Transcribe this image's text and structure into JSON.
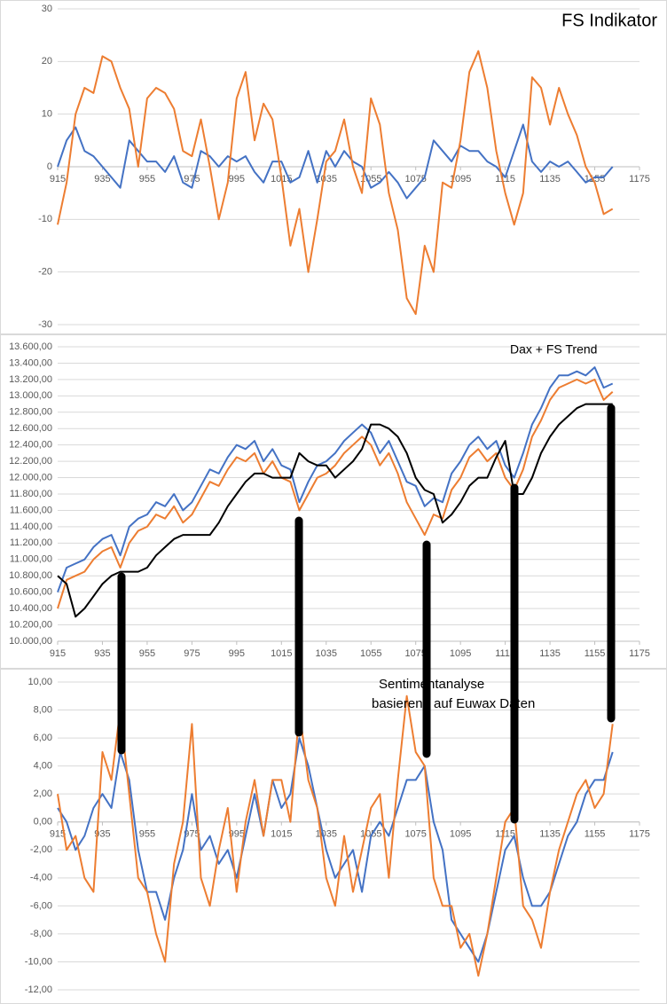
{
  "chart_data": [
    {
      "type": "line",
      "title": "FS Indikator",
      "x": [
        915,
        919,
        923,
        927,
        931,
        935,
        939,
        943,
        947,
        951,
        955,
        959,
        963,
        967,
        971,
        975,
        979,
        983,
        987,
        991,
        995,
        999,
        1003,
        1007,
        1011,
        1015,
        1019,
        1023,
        1027,
        1031,
        1035,
        1039,
        1043,
        1047,
        1051,
        1055,
        1059,
        1063,
        1067,
        1071,
        1075,
        1079,
        1083,
        1087,
        1091,
        1095,
        1099,
        1103,
        1107,
        1111,
        1115,
        1119,
        1123,
        1127,
        1131,
        1135,
        1139,
        1143,
        1147,
        1151,
        1155,
        1159,
        1163
      ],
      "series": [
        {
          "color": "#4472c4",
          "values": [
            0,
            5,
            7.5,
            3,
            2,
            0,
            -2,
            -4,
            5,
            3,
            1,
            1,
            -1,
            2,
            -3,
            -4,
            3,
            2,
            0,
            2,
            1,
            2,
            -1,
            -3,
            1,
            1,
            -3,
            -2,
            3,
            -3,
            3,
            0,
            3,
            1,
            0,
            -4,
            -3,
            -1,
            -3,
            -6,
            -4,
            -2,
            5,
            3,
            1,
            4,
            3,
            3,
            1,
            0,
            -2,
            3,
            8,
            1,
            -1,
            1,
            0,
            1,
            -1,
            -3,
            -2,
            -2,
            0
          ]
        },
        {
          "color": "#ed7d31",
          "values": [
            -11,
            -3,
            10,
            15,
            14,
            21,
            20,
            15,
            11,
            0,
            13,
            15,
            14,
            11,
            3,
            2,
            9,
            0,
            -10,
            -3,
            13,
            18,
            5,
            12,
            9,
            -2,
            -15,
            -8,
            -20,
            -10,
            1,
            3,
            9,
            0,
            -5,
            13,
            8,
            -5,
            -12,
            -25,
            -28,
            -15,
            -20,
            -3,
            -4,
            5,
            18,
            22,
            15,
            3,
            -5,
            -11,
            -5,
            17,
            15,
            8,
            15,
            10,
            6,
            0,
            -3,
            -9,
            -8
          ]
        }
      ],
      "xlim": [
        915,
        1175
      ],
      "xticks": [
        915,
        935,
        955,
        975,
        995,
        1015,
        1035,
        1055,
        1075,
        1095,
        1115,
        1135,
        1155,
        1175
      ],
      "ylim": [
        -30,
        30
      ],
      "yticks": [
        -30,
        -20,
        -10,
        0,
        10,
        20,
        30
      ],
      "grid": true
    },
    {
      "type": "line",
      "annotation": "Dax + FS Trend",
      "x": [
        915,
        919,
        923,
        927,
        931,
        935,
        939,
        943,
        947,
        951,
        955,
        959,
        963,
        967,
        971,
        975,
        979,
        983,
        987,
        991,
        995,
        999,
        1003,
        1007,
        1011,
        1015,
        1019,
        1023,
        1027,
        1031,
        1035,
        1039,
        1043,
        1047,
        1051,
        1055,
        1059,
        1063,
        1067,
        1071,
        1075,
        1079,
        1083,
        1087,
        1091,
        1095,
        1099,
        1103,
        1107,
        1111,
        1115,
        1119,
        1123,
        1127,
        1131,
        1135,
        1139,
        1143,
        1147,
        1151,
        1155,
        1159,
        1163
      ],
      "series": [
        {
          "color": "#4472c4",
          "values": [
            10600,
            10900,
            10950,
            11000,
            11150,
            11250,
            11300,
            11050,
            11400,
            11500,
            11550,
            11700,
            11650,
            11800,
            11600,
            11700,
            11900,
            12100,
            12050,
            12250,
            12400,
            12350,
            12450,
            12200,
            12350,
            12150,
            12100,
            11700,
            11950,
            12150,
            12200,
            12300,
            12450,
            12550,
            12650,
            12550,
            12300,
            12450,
            12200,
            11950,
            11900,
            11650,
            11750,
            11700,
            12050,
            12200,
            12400,
            12500,
            12350,
            12450,
            12150,
            12000,
            12300,
            12650,
            12850,
            13100,
            13250,
            13250,
            13300,
            13250,
            13350,
            13100,
            13150
          ]
        },
        {
          "color": "#ed7d31",
          "values": [
            10400,
            10750,
            10800,
            10850,
            11000,
            11100,
            11150,
            10900,
            11200,
            11350,
            11400,
            11550,
            11500,
            11650,
            11450,
            11550,
            11750,
            11950,
            11900,
            12100,
            12250,
            12200,
            12300,
            12050,
            12200,
            12000,
            11950,
            11600,
            11800,
            12000,
            12050,
            12150,
            12300,
            12400,
            12500,
            12400,
            12150,
            12300,
            12050,
            11700,
            11500,
            11300,
            11550,
            11500,
            11850,
            12000,
            12250,
            12350,
            12200,
            12300,
            12000,
            11850,
            12100,
            12500,
            12700,
            12950,
            13100,
            13150,
            13200,
            13150,
            13200,
            12950,
            13050
          ]
        },
        {
          "color": "#000000",
          "values": [
            10800,
            10700,
            10300,
            10400,
            10550,
            10700,
            10800,
            10850,
            10850,
            10850,
            10900,
            11050,
            11150,
            11250,
            11300,
            11300,
            11300,
            11300,
            11450,
            11650,
            11800,
            11950,
            12050,
            12050,
            12000,
            12000,
            12000,
            12300,
            12200,
            12150,
            12150,
            12000,
            12100,
            12200,
            12350,
            12650,
            12650,
            12600,
            12500,
            12300,
            12000,
            11850,
            11800,
            11450,
            11550,
            11700,
            11900,
            12000,
            12000,
            12250,
            12450,
            11800,
            11800,
            12000,
            12300,
            12500,
            12650,
            12750,
            12850,
            12900,
            12900,
            12900,
            12900
          ]
        }
      ],
      "xlim": [
        915,
        1175
      ],
      "xticks": [
        915,
        935,
        955,
        975,
        995,
        1015,
        1035,
        1055,
        1075,
        1095,
        1115,
        1135,
        1155,
        1175
      ],
      "ylim": [
        10000,
        13600
      ],
      "yticks": [
        {
          "value": 10000,
          "label": "10.000,00"
        },
        {
          "value": 10200,
          "label": "10.200,00"
        },
        {
          "value": 10400,
          "label": "10.400,00"
        },
        {
          "value": 10600,
          "label": "10.600,00"
        },
        {
          "value": 10800,
          "label": "10.800,00"
        },
        {
          "value": 11000,
          "label": "11.000,00"
        },
        {
          "value": 11200,
          "label": "11.200,00"
        },
        {
          "value": 11400,
          "label": "11.400,00"
        },
        {
          "value": 11600,
          "label": "11.600,00"
        },
        {
          "value": 11800,
          "label": "11.800,00"
        },
        {
          "value": 12000,
          "label": "12.000,00"
        },
        {
          "value": 12200,
          "label": "12.200,00"
        },
        {
          "value": 12400,
          "label": "12.400,00"
        },
        {
          "value": 12600,
          "label": "12.600,00"
        },
        {
          "value": 12800,
          "label": "12.800,00"
        },
        {
          "value": 13000,
          "label": "13.000,00"
        },
        {
          "value": 13200,
          "label": "13.200,00"
        },
        {
          "value": 13400,
          "label": "13.400,00"
        },
        {
          "value": 13600,
          "label": "13.600,00"
        }
      ],
      "grid": true
    },
    {
      "type": "line",
      "annotation": [
        "Sentimentanalyse",
        "basierend auf Euwax Daten"
      ],
      "x": [
        915,
        919,
        923,
        927,
        931,
        935,
        939,
        943,
        947,
        951,
        955,
        959,
        963,
        967,
        971,
        975,
        979,
        983,
        987,
        991,
        995,
        999,
        1003,
        1007,
        1011,
        1015,
        1019,
        1023,
        1027,
        1031,
        1035,
        1039,
        1043,
        1047,
        1051,
        1055,
        1059,
        1063,
        1067,
        1071,
        1075,
        1079,
        1083,
        1087,
        1091,
        1095,
        1099,
        1103,
        1107,
        1111,
        1115,
        1119,
        1123,
        1127,
        1131,
        1135,
        1139,
        1143,
        1147,
        1151,
        1155,
        1159,
        1163
      ],
      "series": [
        {
          "color": "#4472c4",
          "values": [
            1,
            0,
            -2,
            -1,
            1,
            2,
            1,
            5,
            3,
            -2,
            -5,
            -5,
            -7,
            -4,
            -2,
            2,
            -2,
            -1,
            -3,
            -2,
            -4,
            -1,
            2,
            -1,
            3,
            1,
            2,
            6,
            4,
            1,
            -2,
            -4,
            -3,
            -2,
            -5,
            -1,
            0,
            -1,
            1,
            3,
            3,
            4,
            0,
            -2,
            -7,
            -8,
            -9,
            -10,
            -8,
            -5,
            -2,
            -1,
            -4,
            -6,
            -6,
            -5,
            -3,
            -1,
            0,
            2,
            3,
            3,
            5
          ]
        },
        {
          "color": "#ed7d31",
          "values": [
            2,
            -2,
            -1,
            -4,
            -5,
            5,
            3,
            8,
            2,
            -4,
            -5,
            -8,
            -10,
            -3,
            0,
            7,
            -4,
            -6,
            -2,
            1,
            -5,
            0,
            3,
            -1,
            3,
            3,
            0,
            8,
            3,
            1,
            -4,
            -6,
            -1,
            -5,
            -2,
            1,
            2,
            -4,
            3,
            9,
            5,
            4,
            -4,
            -6,
            -6,
            -9,
            -8,
            -11,
            -8,
            -4,
            0,
            1,
            -6,
            -7,
            -9,
            -5,
            -2,
            0,
            2,
            3,
            1,
            2,
            7
          ]
        }
      ],
      "xlim": [
        915,
        1175
      ],
      "xticks": [
        915,
        935,
        955,
        975,
        995,
        1015,
        1035,
        1055,
        1075,
        1095,
        1115,
        1135,
        1155,
        1175
      ],
      "ylim": [
        -12,
        10
      ],
      "yticks": [
        {
          "value": -12,
          "label": "-12,00"
        },
        {
          "value": -10,
          "label": "-10,00"
        },
        {
          "value": -8,
          "label": "-8,00"
        },
        {
          "value": -6,
          "label": "-6,00"
        },
        {
          "value": -4,
          "label": "-4,00"
        },
        {
          "value": -2,
          "label": "-2,00"
        },
        {
          "value": 0,
          "label": "0,00"
        },
        {
          "value": 2,
          "label": "2,00"
        },
        {
          "value": 4,
          "label": "4,00"
        },
        {
          "value": 6,
          "label": "6,00"
        },
        {
          "value": 8,
          "label": "8,00"
        },
        {
          "value": 10,
          "label": "10,00"
        }
      ],
      "grid": true
    }
  ]
}
